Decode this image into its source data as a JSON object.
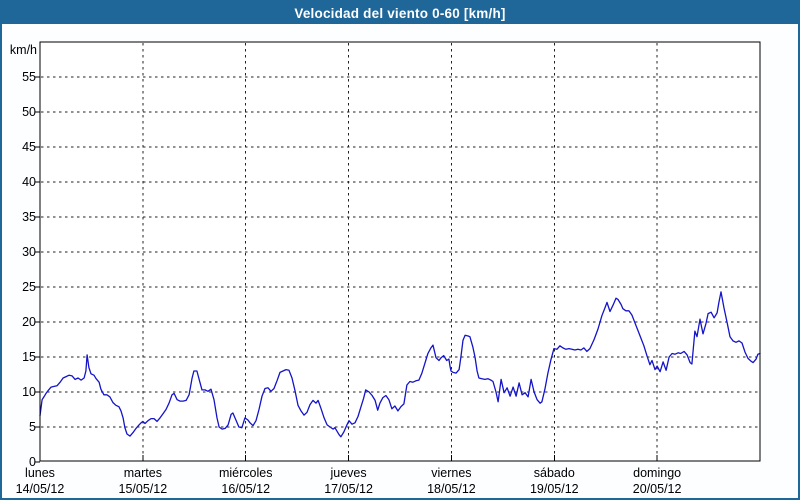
{
  "window": {
    "title": "Velocidad del viento 0-60 [km/h]"
  },
  "colors": {
    "titlebar_bg": "#1f6699",
    "title_text": "#ffffff",
    "frame_border": "#1f6699",
    "page_bg": "#fcfeff",
    "plot_bg": "#ffffff",
    "line": "#1414c8",
    "grid": "#222222",
    "axis": "#000000",
    "label_text": "#000000"
  },
  "chart_data": {
    "type": "line",
    "title": "Velocidad del viento 0-60 [km/h]",
    "ylabel": "km/h",
    "ylim": [
      0,
      60
    ],
    "yticks": [
      0,
      5,
      10,
      15,
      20,
      25,
      30,
      35,
      40,
      45,
      50,
      55
    ],
    "grid": "dashed",
    "legend": "none",
    "x_unit": "hours",
    "xlim_hours": [
      0,
      168
    ],
    "day_ticks": [
      {
        "name": "lunes",
        "date": "14/05/12",
        "hour": 0
      },
      {
        "name": "martes",
        "date": "15/05/12",
        "hour": 24
      },
      {
        "name": "miércoles",
        "date": "16/05/12",
        "hour": 48
      },
      {
        "name": "jueves",
        "date": "17/05/12",
        "hour": 72
      },
      {
        "name": "viernes",
        "date": "18/05/12",
        "hour": 96
      },
      {
        "name": "sábado",
        "date": "19/05/12",
        "hour": 120
      },
      {
        "name": "domingo",
        "date": "20/05/12",
        "hour": 144
      }
    ],
    "series": [
      {
        "name": "velocidad_viento_kmh",
        "points": [
          [
            0,
            6.6
          ],
          [
            0.5,
            8.9
          ],
          [
            0.9,
            9.3
          ],
          [
            1.4,
            9.8
          ],
          [
            1.9,
            10.2
          ],
          [
            2.6,
            10.7
          ],
          [
            3.3,
            10.8
          ],
          [
            4,
            10.9
          ],
          [
            4.7,
            11.4
          ],
          [
            5.4,
            12
          ],
          [
            6.1,
            12.2
          ],
          [
            6.8,
            12.4
          ],
          [
            7.5,
            12.3
          ],
          [
            8.2,
            11.8
          ],
          [
            8.9,
            12
          ],
          [
            9.6,
            11.7
          ],
          [
            10.3,
            12
          ],
          [
            10.7,
            13
          ],
          [
            11,
            15.3
          ],
          [
            11.4,
            13.5
          ],
          [
            11.9,
            12.6
          ],
          [
            12.6,
            12.4
          ],
          [
            13.1,
            11.9
          ],
          [
            13.8,
            11.4
          ],
          [
            14.2,
            10.4
          ],
          [
            14.9,
            9.6
          ],
          [
            15.6,
            9.6
          ],
          [
            16.3,
            9.3
          ],
          [
            17,
            8.5
          ],
          [
            17.7,
            8.1
          ],
          [
            18.4,
            7.9
          ],
          [
            18.9,
            7.3
          ],
          [
            19.4,
            6.3
          ],
          [
            19.8,
            4.9
          ],
          [
            20.3,
            4
          ],
          [
            21,
            3.7
          ],
          [
            21.7,
            4.2
          ],
          [
            22.4,
            4.8
          ],
          [
            23.1,
            5.3
          ],
          [
            23.6,
            5.6
          ],
          [
            24,
            5.8
          ],
          [
            24.5,
            5.5
          ],
          [
            25.2,
            5.9
          ],
          [
            25.9,
            6.2
          ],
          [
            26.6,
            6.2
          ],
          [
            27.3,
            5.8
          ],
          [
            28,
            6.3
          ],
          [
            28.7,
            6.9
          ],
          [
            29.4,
            7.5
          ],
          [
            30.1,
            8.4
          ],
          [
            30.8,
            9.6
          ],
          [
            31.3,
            9.8
          ],
          [
            32,
            8.9
          ],
          [
            32.7,
            8.7
          ],
          [
            33.4,
            8.7
          ],
          [
            34.1,
            8.8
          ],
          [
            34.8,
            9.6
          ],
          [
            35.5,
            12
          ],
          [
            35.9,
            13
          ],
          [
            36.6,
            13
          ],
          [
            37.3,
            11.4
          ],
          [
            37.8,
            10.3
          ],
          [
            38.5,
            10.3
          ],
          [
            39.2,
            10.1
          ],
          [
            39.9,
            10.4
          ],
          [
            40.6,
            8.9
          ],
          [
            41.3,
            6.3
          ],
          [
            41.8,
            5
          ],
          [
            42.5,
            4.7
          ],
          [
            43.2,
            4.8
          ],
          [
            43.9,
            5.3
          ],
          [
            44.6,
            6.8
          ],
          [
            45,
            7
          ],
          [
            45.7,
            6
          ],
          [
            46.4,
            5
          ],
          [
            47.1,
            4.9
          ],
          [
            47.8,
            6.3
          ],
          [
            48.5,
            6
          ],
          [
            49,
            5.6
          ],
          [
            49.7,
            5.2
          ],
          [
            50.4,
            5.9
          ],
          [
            51.1,
            7.5
          ],
          [
            51.8,
            9.4
          ],
          [
            52.5,
            10.5
          ],
          [
            53.2,
            10.6
          ],
          [
            53.9,
            10.1
          ],
          [
            54.6,
            10.5
          ],
          [
            55.3,
            11.6
          ],
          [
            56,
            12.8
          ],
          [
            56.7,
            13
          ],
          [
            57.4,
            13.2
          ],
          [
            58.1,
            13.1
          ],
          [
            58.8,
            12
          ],
          [
            59.5,
            10.2
          ],
          [
            60.2,
            8.1
          ],
          [
            60.9,
            7.3
          ],
          [
            61.6,
            6.7
          ],
          [
            62.3,
            7.1
          ],
          [
            63,
            8.2
          ],
          [
            63.7,
            8.8
          ],
          [
            64.4,
            8.4
          ],
          [
            64.9,
            8.8
          ],
          [
            65.6,
            7.6
          ],
          [
            66.3,
            6.3
          ],
          [
            67,
            5.3
          ],
          [
            67.7,
            5
          ],
          [
            68.4,
            4.7
          ],
          [
            68.8,
            4.9
          ],
          [
            69.3,
            4.4
          ],
          [
            69.8,
            3.9
          ],
          [
            70.2,
            3.6
          ],
          [
            70.9,
            4.3
          ],
          [
            71.6,
            5.3
          ],
          [
            72.1,
            5.9
          ],
          [
            72.8,
            5.4
          ],
          [
            73.5,
            5.6
          ],
          [
            74.2,
            6.5
          ],
          [
            74.9,
            7.9
          ],
          [
            75.5,
            9.1
          ],
          [
            76,
            10.3
          ],
          [
            76.8,
            10
          ],
          [
            77.5,
            9.5
          ],
          [
            78.2,
            8.8
          ],
          [
            78.8,
            7.4
          ],
          [
            79.3,
            8.4
          ],
          [
            80,
            9.2
          ],
          [
            80.7,
            9.5
          ],
          [
            81.4,
            8.9
          ],
          [
            82.1,
            7.6
          ],
          [
            82.8,
            8
          ],
          [
            83.5,
            7.3
          ],
          [
            84.2,
            7.9
          ],
          [
            84.9,
            8.3
          ],
          [
            85.6,
            11
          ],
          [
            86.3,
            11.5
          ],
          [
            87,
            11.4
          ],
          [
            87.7,
            11.6
          ],
          [
            88.4,
            11.7
          ],
          [
            89.1,
            12.7
          ],
          [
            89.8,
            14.1
          ],
          [
            90.5,
            15.5
          ],
          [
            91.2,
            16.3
          ],
          [
            91.7,
            16.7
          ],
          [
            92.4,
            14.9
          ],
          [
            93.1,
            14.5
          ],
          [
            93.6,
            14.9
          ],
          [
            94.2,
            15.2
          ],
          [
            94.9,
            14.5
          ],
          [
            95.4,
            14.7
          ],
          [
            95.7,
            13.6
          ],
          [
            95.9,
            13
          ],
          [
            96.4,
            12.8
          ],
          [
            97.1,
            12.7
          ],
          [
            97.8,
            13.2
          ],
          [
            98.2,
            15
          ],
          [
            98.7,
            17.4
          ],
          [
            99.2,
            18.1
          ],
          [
            99.9,
            18
          ],
          [
            100.3,
            17.9
          ],
          [
            101,
            16.4
          ],
          [
            101.5,
            15
          ],
          [
            102,
            13
          ],
          [
            102.4,
            12
          ],
          [
            103.1,
            11.9
          ],
          [
            103.8,
            11.8
          ],
          [
            104.5,
            11.9
          ],
          [
            105.2,
            11.7
          ],
          [
            105.7,
            11.5
          ],
          [
            106.4,
            10
          ],
          [
            106.9,
            8.6
          ],
          [
            107.6,
            11.8
          ],
          [
            108.3,
            9.9
          ],
          [
            109,
            10.6
          ],
          [
            109.7,
            9.4
          ],
          [
            110.4,
            10.7
          ],
          [
            111.1,
            9.4
          ],
          [
            111.8,
            11.3
          ],
          [
            112.5,
            9.6
          ],
          [
            113.2,
            9.9
          ],
          [
            113.9,
            9.3
          ],
          [
            114.6,
            11.8
          ],
          [
            115.3,
            10
          ],
          [
            116,
            8.9
          ],
          [
            116.7,
            8.4
          ],
          [
            117.1,
            8.6
          ],
          [
            117.8,
            10.4
          ],
          [
            118.5,
            12.7
          ],
          [
            119.2,
            14.6
          ],
          [
            119.7,
            15.7
          ],
          [
            119.9,
            16.2
          ],
          [
            120.6,
            16.1
          ],
          [
            121.3,
            16.6
          ],
          [
            122,
            16.3
          ],
          [
            122.7,
            16.1
          ],
          [
            123.4,
            16.2
          ],
          [
            124.1,
            16.1
          ],
          [
            124.8,
            16
          ],
          [
            125.5,
            16.1
          ],
          [
            126.2,
            16
          ],
          [
            126.9,
            16.3
          ],
          [
            127.6,
            15.8
          ],
          [
            128.3,
            16.2
          ],
          [
            129.3,
            17.5
          ],
          [
            130.2,
            19
          ],
          [
            131.1,
            20.9
          ],
          [
            131.8,
            22
          ],
          [
            132.3,
            22.8
          ],
          [
            133,
            21.5
          ],
          [
            133.7,
            22.4
          ],
          [
            134.4,
            23.4
          ],
          [
            134.9,
            23.2
          ],
          [
            135.6,
            22.5
          ],
          [
            136,
            21.9
          ],
          [
            136.7,
            21.6
          ],
          [
            137.4,
            21.6
          ],
          [
            138.1,
            21
          ],
          [
            138.8,
            19.9
          ],
          [
            139.5,
            18.8
          ],
          [
            140.2,
            17.7
          ],
          [
            140.9,
            16.6
          ],
          [
            141.6,
            15.2
          ],
          [
            142.3,
            13.9
          ],
          [
            142.8,
            14.5
          ],
          [
            143.5,
            13.2
          ],
          [
            144,
            13.7
          ],
          [
            144.7,
            12.9
          ],
          [
            145.4,
            14.3
          ],
          [
            146.1,
            13.1
          ],
          [
            146.8,
            15
          ],
          [
            147.5,
            15.5
          ],
          [
            148.2,
            15.4
          ],
          [
            148.9,
            15.6
          ],
          [
            149.5,
            15.5
          ],
          [
            150.3,
            15.8
          ],
          [
            151,
            15.3
          ],
          [
            151.7,
            14.2
          ],
          [
            152.1,
            14
          ],
          [
            152.8,
            18.7
          ],
          [
            153.3,
            17.9
          ],
          [
            154,
            20.4
          ],
          [
            154.7,
            18.3
          ],
          [
            155.4,
            19.8
          ],
          [
            155.9,
            21.2
          ],
          [
            156.6,
            21.4
          ],
          [
            157.3,
            20.6
          ],
          [
            158,
            21.3
          ],
          [
            158.4,
            22.8
          ],
          [
            158.9,
            24.3
          ],
          [
            159.6,
            22
          ],
          [
            160.3,
            20
          ],
          [
            161,
            17.9
          ],
          [
            161.7,
            17.3
          ],
          [
            162.4,
            17.1
          ],
          [
            163.1,
            17.3
          ],
          [
            163.8,
            17
          ],
          [
            164.5,
            15.7
          ],
          [
            165.2,
            14.8
          ],
          [
            165.9,
            14.4
          ],
          [
            166.4,
            14.2
          ],
          [
            167.1,
            14.7
          ],
          [
            167.5,
            15.4
          ],
          [
            168,
            15.5
          ]
        ]
      }
    ]
  }
}
